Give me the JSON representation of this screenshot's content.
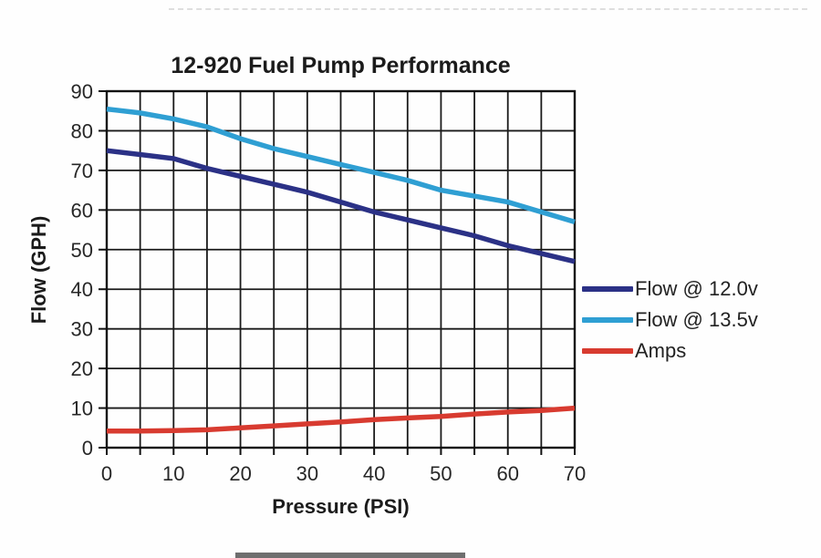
{
  "chart_data": {
    "type": "line",
    "title": "12-920 Fuel Pump Performance",
    "xlabel": "Pressure (PSI)",
    "ylabel": "Flow (GPH)",
    "xlim": [
      0,
      70
    ],
    "ylim": [
      0,
      90
    ],
    "x_grid_step": 5,
    "y_grid_step": 10,
    "x_ticks": [
      0,
      10,
      20,
      30,
      40,
      50,
      60,
      70
    ],
    "y_ticks": [
      0,
      10,
      20,
      30,
      40,
      50,
      60,
      70,
      80,
      90
    ],
    "grid": "on",
    "legend_position": "right-of-plot",
    "axis_color": "#111111",
    "tick_label_color": "#272727",
    "x": [
      0,
      5,
      10,
      15,
      20,
      25,
      30,
      35,
      40,
      45,
      50,
      55,
      60,
      65,
      70
    ],
    "series": [
      {
        "name": "Flow @ 12.0v",
        "color": "#2b3186",
        "values": [
          75,
          74,
          73,
          70.5,
          68.5,
          66.5,
          64.5,
          62,
          59.5,
          57.5,
          55.5,
          53.5,
          51,
          49,
          47
        ]
      },
      {
        "name": "Flow @ 13.5v",
        "color": "#2f9fd3",
        "values": [
          85.5,
          84.5,
          83,
          81,
          78,
          75.5,
          73.5,
          71.5,
          69.5,
          67.5,
          65,
          63.5,
          62,
          59.5,
          57
        ]
      },
      {
        "name": "Amps",
        "color": "#d83b30",
        "values": [
          4.2,
          4.2,
          4.3,
          4.5,
          5,
          5.5,
          6,
          6.5,
          7.1,
          7.5,
          7.9,
          8.5,
          9,
          9.4,
          10
        ]
      }
    ]
  }
}
